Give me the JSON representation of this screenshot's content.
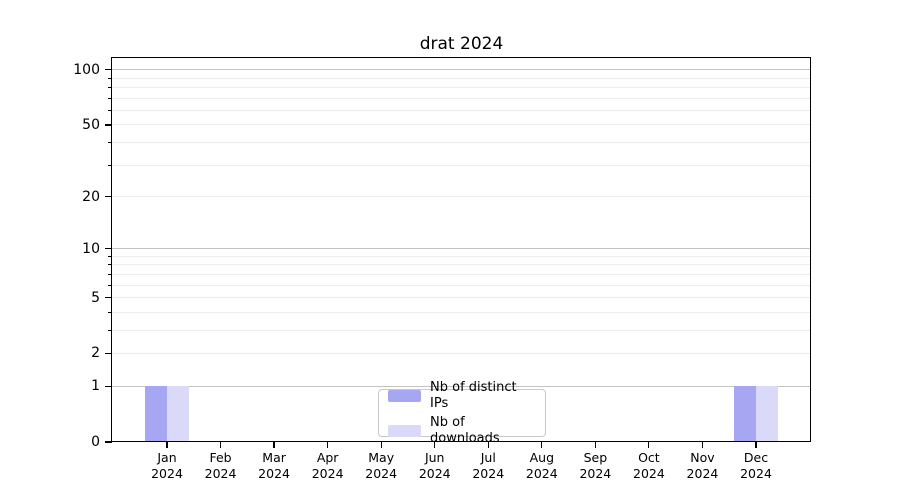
{
  "chart_data": {
    "type": "bar",
    "title": "drat 2024",
    "categories": [
      "Jan 2024",
      "Feb 2024",
      "Mar 2024",
      "Apr 2024",
      "May 2024",
      "Jun 2024",
      "Jul 2024",
      "Aug 2024",
      "Sep 2024",
      "Oct 2024",
      "Nov 2024",
      "Dec 2024"
    ],
    "series": [
      {
        "name": "Nb of distinct IPs",
        "color": "#a6a6f3",
        "values": [
          1,
          0,
          0,
          0,
          0,
          0,
          0,
          0,
          0,
          0,
          0,
          1
        ]
      },
      {
        "name": "Nb of downloads",
        "color": "#dadaf8",
        "values": [
          1,
          0,
          0,
          0,
          0,
          0,
          0,
          0,
          0,
          0,
          0,
          1
        ]
      }
    ],
    "yscale": "log1p",
    "ylim": [
      0,
      116
    ],
    "yticks": [
      0,
      1,
      2,
      5,
      10,
      20,
      50,
      100
    ],
    "yticks_minor": [
      3,
      4,
      6,
      7,
      8,
      9,
      30,
      40,
      60,
      70,
      80,
      90
    ],
    "gridlines_major": [
      1,
      10,
      100
    ],
    "gridlines_minor": [
      2,
      3,
      4,
      5,
      6,
      7,
      8,
      9,
      20,
      30,
      40,
      50,
      60,
      70,
      80,
      90
    ],
    "legend_position": "lower center",
    "grid": true,
    "colors": {
      "grid_major": "#c3c3c3",
      "grid_minor": "#ececec",
      "axis": "#000000",
      "background": "#ffffff"
    }
  }
}
